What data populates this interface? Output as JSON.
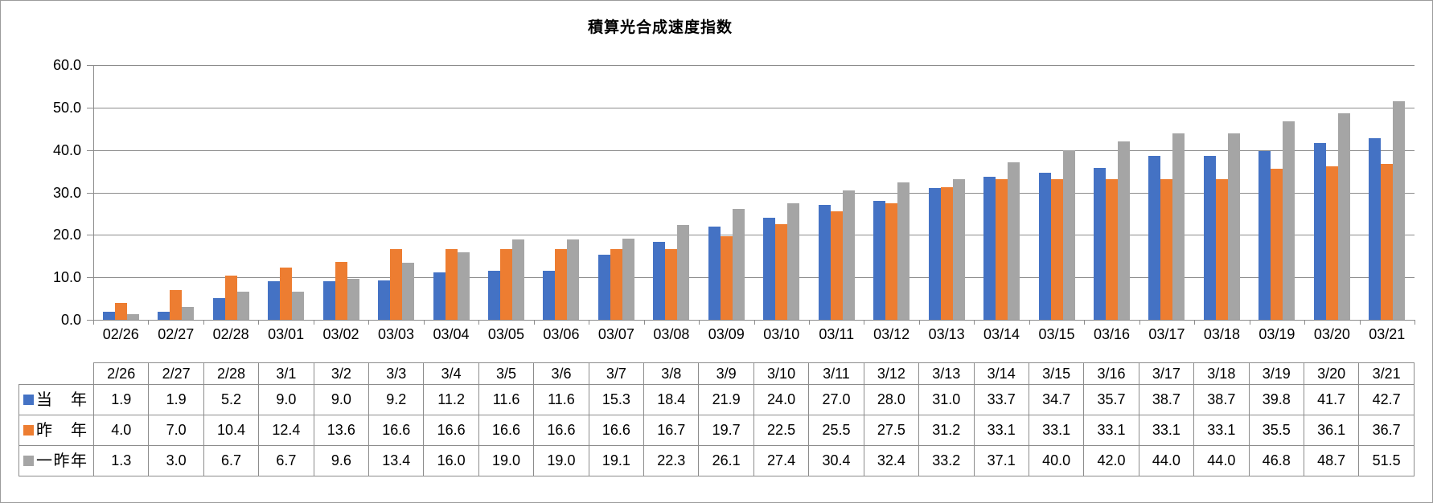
{
  "chart_data": {
    "type": "bar",
    "title": "積算光合成速度指数",
    "xlabel": "",
    "ylabel": "",
    "ylim": [
      0,
      60
    ],
    "ytick_step": 10,
    "ytick_labels": [
      "0.0",
      "10.0",
      "20.0",
      "30.0",
      "40.0",
      "50.0",
      "60.0"
    ],
    "grid": true,
    "legend_position": "embedded-in-data-table",
    "categories": [
      "02/26",
      "02/27",
      "02/28",
      "03/01",
      "03/02",
      "03/03",
      "03/04",
      "03/05",
      "03/06",
      "03/07",
      "03/08",
      "03/09",
      "03/10",
      "03/11",
      "03/12",
      "03/13",
      "03/14",
      "03/15",
      "03/16",
      "03/17",
      "03/18",
      "03/19",
      "03/20",
      "03/21"
    ],
    "table_headers": [
      "2/26",
      "2/27",
      "2/28",
      "3/1",
      "3/2",
      "3/3",
      "3/4",
      "3/5",
      "3/6",
      "3/7",
      "3/8",
      "3/9",
      "3/10",
      "3/11",
      "3/12",
      "3/13",
      "3/14",
      "3/15",
      "3/16",
      "3/17",
      "3/18",
      "3/19",
      "3/20",
      "3/21"
    ],
    "series": [
      {
        "name": "当年",
        "color": "#4472C4",
        "values": [
          1.9,
          1.9,
          5.2,
          9.0,
          9.0,
          9.2,
          11.2,
          11.6,
          11.6,
          15.3,
          18.4,
          21.9,
          24.0,
          27.0,
          28.0,
          31.0,
          33.7,
          34.7,
          35.7,
          38.7,
          38.7,
          39.8,
          41.7,
          42.7
        ]
      },
      {
        "name": "昨年",
        "color": "#ED7D31",
        "values": [
          4.0,
          7.0,
          10.4,
          12.4,
          13.6,
          16.6,
          16.6,
          16.6,
          16.6,
          16.6,
          16.7,
          19.7,
          22.5,
          25.5,
          27.5,
          31.2,
          33.1,
          33.1,
          33.1,
          33.1,
          33.1,
          35.5,
          36.1,
          36.7
        ]
      },
      {
        "name": "一昨年",
        "color": "#A5A5A5",
        "values": [
          1.3,
          3.0,
          6.7,
          6.7,
          9.6,
          13.4,
          16.0,
          19.0,
          19.0,
          19.1,
          22.3,
          26.1,
          27.4,
          30.4,
          32.4,
          33.2,
          37.1,
          40.0,
          42.0,
          44.0,
          44.0,
          46.8,
          48.7,
          51.5
        ]
      }
    ]
  },
  "colors": {
    "axis": "#8c8c8c",
    "gridline": "#8c8c8c",
    "table_border": "#8c8c8c",
    "frame_border": "#9b9b9b",
    "text": "#000000"
  }
}
